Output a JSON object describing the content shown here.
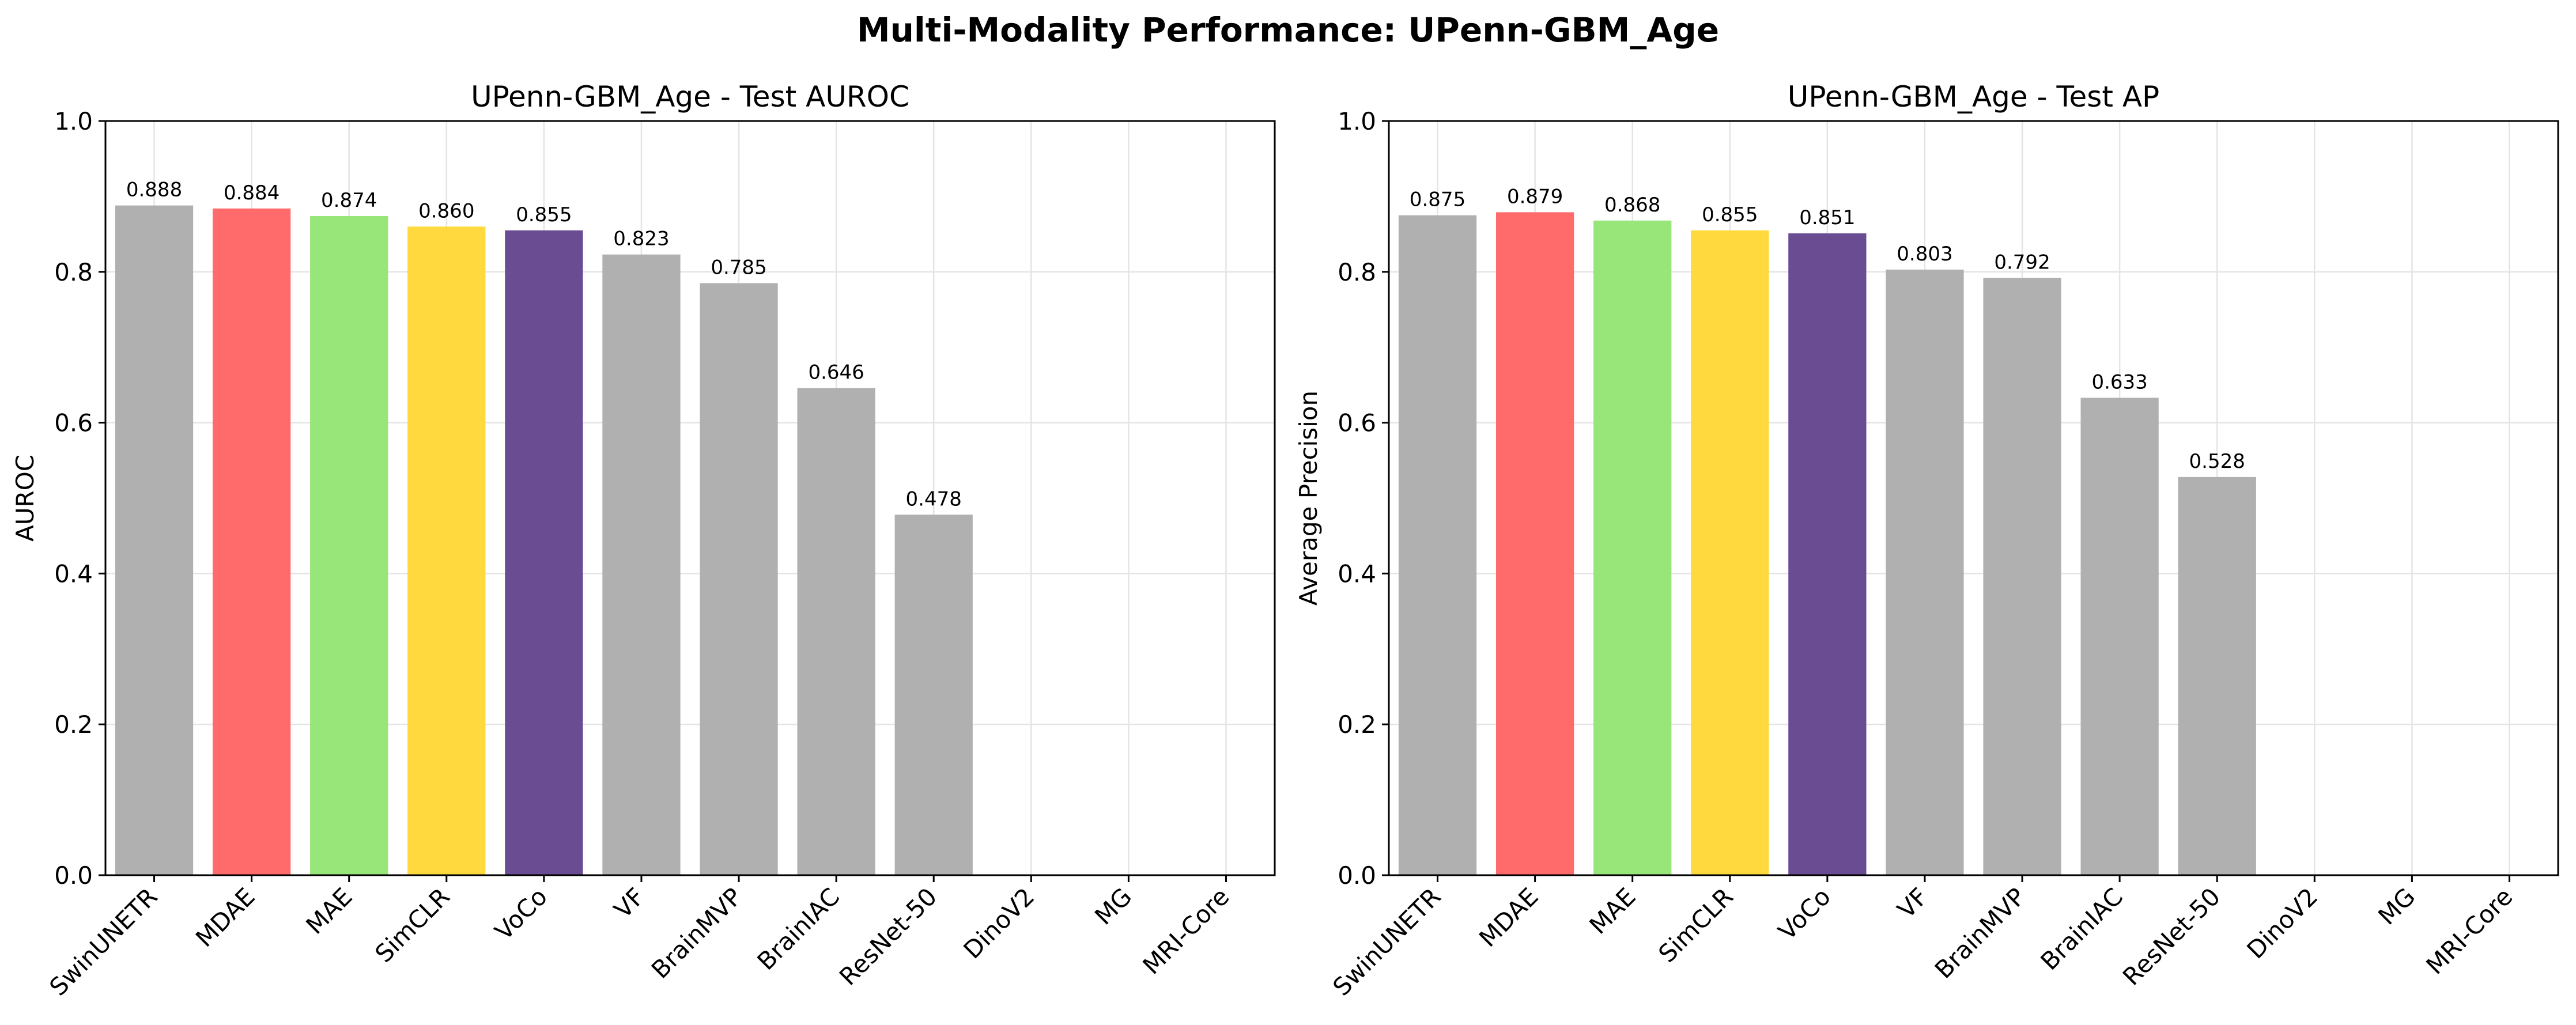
{
  "figure": {
    "title": "Multi-Modality Performance: UPenn-GBM_Age"
  },
  "chart_data": [
    {
      "type": "bar",
      "title": "UPenn-GBM_Age - Test AUROC",
      "xlabel": "",
      "ylabel": "AUROC",
      "ylim": [
        0,
        1.0
      ],
      "yticks": [
        "0.0",
        "0.2",
        "0.4",
        "0.6",
        "0.8",
        "1.0"
      ],
      "grid": true,
      "categories": [
        "SwinUNETR",
        "MDAE",
        "MAE",
        "SimCLR",
        "VoCo",
        "VF",
        "BrainMVP",
        "BrainIAC",
        "ResNet-50",
        "DinoV2",
        "MG",
        "MRI-Core"
      ],
      "values": [
        0.888,
        0.884,
        0.874,
        0.86,
        0.855,
        0.823,
        0.785,
        0.646,
        0.478,
        null,
        null,
        null
      ],
      "value_labels": [
        "0.888",
        "0.884",
        "0.874",
        "0.860",
        "0.855",
        "0.823",
        "0.785",
        "0.646",
        "0.478",
        "",
        "",
        ""
      ],
      "colors": [
        "#b0b0b0",
        "#ff6b6b",
        "#98e67a",
        "#ffd93d",
        "#6a4c93",
        "#b0b0b0",
        "#b0b0b0",
        "#b0b0b0",
        "#b0b0b0",
        "#b0b0b0",
        "#b0b0b0",
        "#b0b0b0"
      ]
    },
    {
      "type": "bar",
      "title": "UPenn-GBM_Age - Test AP",
      "xlabel": "",
      "ylabel": "Average Precision",
      "ylim": [
        0,
        1.0
      ],
      "yticks": [
        "0.0",
        "0.2",
        "0.4",
        "0.6",
        "0.8",
        "1.0"
      ],
      "grid": true,
      "categories": [
        "SwinUNETR",
        "MDAE",
        "MAE",
        "SimCLR",
        "VoCo",
        "VF",
        "BrainMVP",
        "BrainIAC",
        "ResNet-50",
        "DinoV2",
        "MG",
        "MRI-Core"
      ],
      "values": [
        0.875,
        0.879,
        0.868,
        0.855,
        0.851,
        0.803,
        0.792,
        0.633,
        0.528,
        null,
        null,
        null
      ],
      "value_labels": [
        "0.875",
        "0.879",
        "0.868",
        "0.855",
        "0.851",
        "0.803",
        "0.792",
        "0.633",
        "0.528",
        "",
        "",
        ""
      ],
      "colors": [
        "#b0b0b0",
        "#ff6b6b",
        "#98e67a",
        "#ffd93d",
        "#6a4c93",
        "#b0b0b0",
        "#b0b0b0",
        "#b0b0b0",
        "#b0b0b0",
        "#b0b0b0",
        "#b0b0b0",
        "#b0b0b0"
      ]
    }
  ]
}
